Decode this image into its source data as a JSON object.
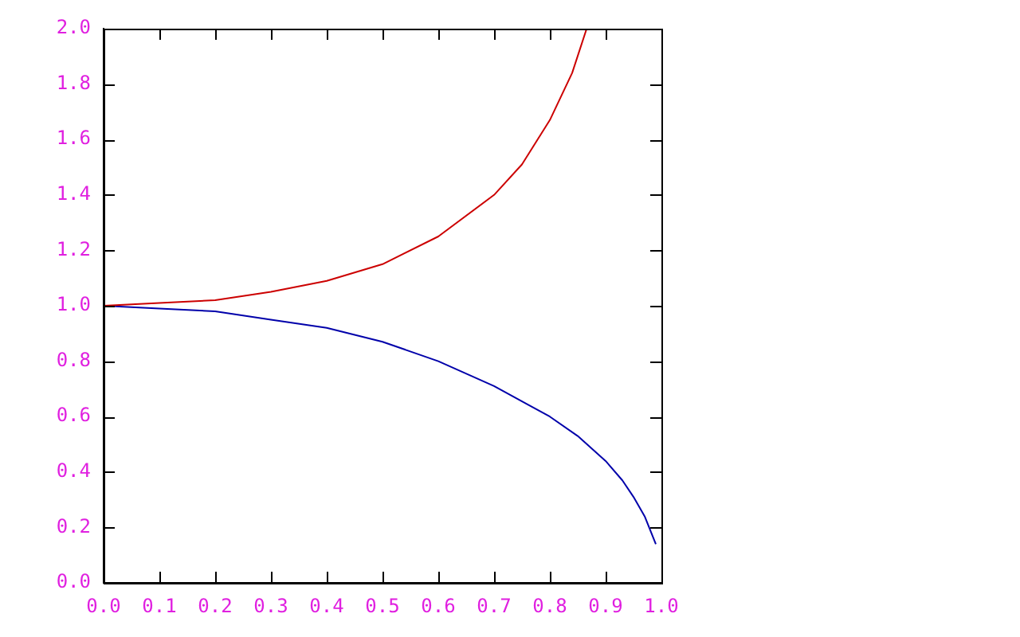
{
  "chart_data": {
    "type": "line",
    "xlim": [
      0,
      1.0
    ],
    "xticks": [
      {
        "value": 0,
        "label": "0.0"
      },
      0.1,
      0.2,
      0.3,
      0.4,
      0.5,
      0.6,
      0.7,
      0.8,
      0.9,
      {
        "value": 1,
        "label": "1.0"
      }
    ],
    "ylim": [
      0,
      2.0
    ],
    "yticks": [
      {
        "value": 0,
        "label": "0.0"
      },
      0.2,
      0.4,
      0.6,
      0.8,
      {
        "value": 1,
        "label": "1.0"
      },
      1.2,
      1.4,
      1.6,
      1.8,
      {
        "value": 2,
        "label": "2.0"
      }
    ],
    "grid": false,
    "legend": false,
    "marker": "none",
    "line_style": "solid",
    "series": [
      {
        "color": "#cc0000",
        "x": [
          0,
          0.1,
          0.2,
          0.3,
          0.4,
          0.5,
          0.6,
          0.7,
          0.75,
          0.8,
          0.84,
          0.866
        ],
        "values": [
          1.0,
          1.01,
          1.02,
          1.05,
          1.09,
          1.15,
          1.25,
          1.4,
          1.51,
          1.67,
          1.84,
          2.0
        ]
      },
      {
        "color": "#0000aa",
        "x": [
          0,
          0.1,
          0.2,
          0.3,
          0.4,
          0.5,
          0.6,
          0.7,
          0.8,
          0.85,
          0.9,
          0.93,
          0.95,
          0.97,
          0.99
        ],
        "values": [
          1.0,
          0.99,
          0.98,
          0.95,
          0.92,
          0.87,
          0.8,
          0.71,
          0.6,
          0.53,
          0.44,
          0.37,
          0.31,
          0.24,
          0.14
        ]
      }
    ]
  }
}
